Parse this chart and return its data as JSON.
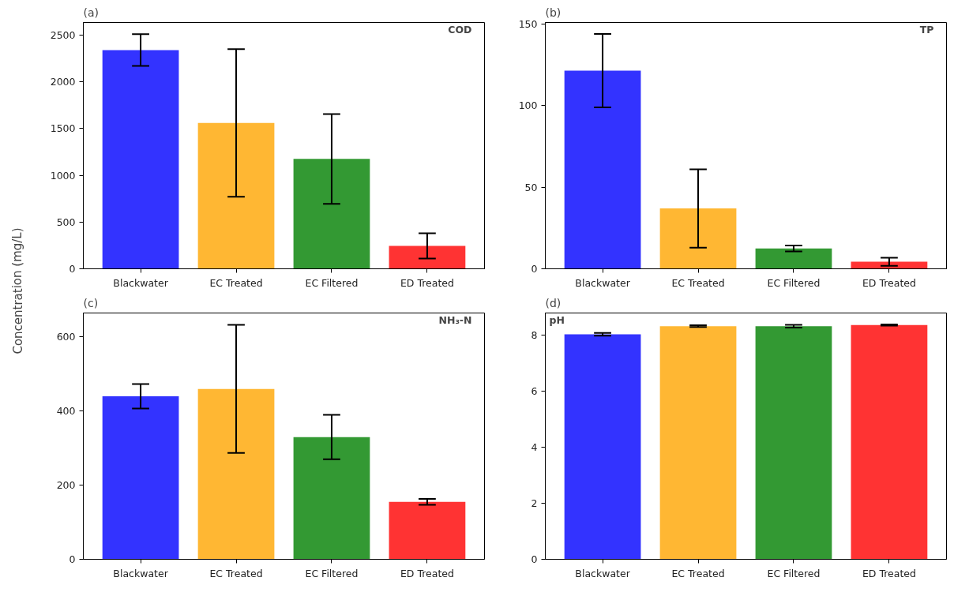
{
  "chart_data": [
    {
      "type": "bar",
      "title": "(a)",
      "ylabel": "Concentration (mg/L)",
      "annotations": [
        "COD"
      ],
      "categories": [
        "Blackwater",
        "EC Treated",
        "EC Filtered",
        "ED Treated"
      ],
      "values": [
        2340,
        1560,
        1175,
        245
      ],
      "errors": [
        170,
        790,
        480,
        135
      ],
      "colors": [
        "#3333ff",
        "#ffb733",
        "#339933",
        "#ff3333"
      ],
      "ylim": [
        0,
        2635
      ],
      "yticks": [
        0,
        500,
        1000,
        1500,
        2000,
        2500
      ],
      "grid": false
    },
    {
      "type": "bar",
      "title": "(b)",
      "annotations": [
        "TP"
      ],
      "categories": [
        "Blackwater",
        "EC Treated",
        "EC Filtered",
        "ED Treated"
      ],
      "values": [
        121.5,
        37,
        12.5,
        4.3
      ],
      "errors": [
        22.5,
        24,
        1.8,
        2.5
      ],
      "colors": [
        "#3333ff",
        "#ffb733",
        "#339933",
        "#ff3333"
      ],
      "ylim": [
        0,
        151
      ],
      "yticks": [
        0,
        50,
        100,
        150
      ],
      "grid": false
    },
    {
      "type": "bar",
      "title": "(c)",
      "annotations": [
        "NH₃-N"
      ],
      "categories": [
        "Blackwater",
        "EC Treated",
        "EC Filtered",
        "ED Treated"
      ],
      "values": [
        440,
        460,
        330,
        155
      ],
      "errors": [
        33,
        173,
        60,
        8
      ],
      "colors": [
        "#3333ff",
        "#ffb733",
        "#339933",
        "#ff3333"
      ],
      "ylim": [
        0,
        665
      ],
      "yticks": [
        0,
        200,
        400,
        600
      ],
      "grid": false
    },
    {
      "type": "bar",
      "title": "(d)",
      "annotations": [
        "pH"
      ],
      "categories": [
        "Blackwater",
        "EC Treated",
        "EC Filtered",
        "ED Treated"
      ],
      "values": [
        8.04,
        8.33,
        8.33,
        8.37
      ],
      "errors": [
        0.05,
        0.03,
        0.05,
        0.02
      ],
      "colors": [
        "#3333ff",
        "#ffb733",
        "#339933",
        "#ff3333"
      ],
      "ylim": [
        0,
        8.8
      ],
      "yticks": [
        0,
        2,
        4,
        6,
        8
      ],
      "grid": false
    }
  ]
}
